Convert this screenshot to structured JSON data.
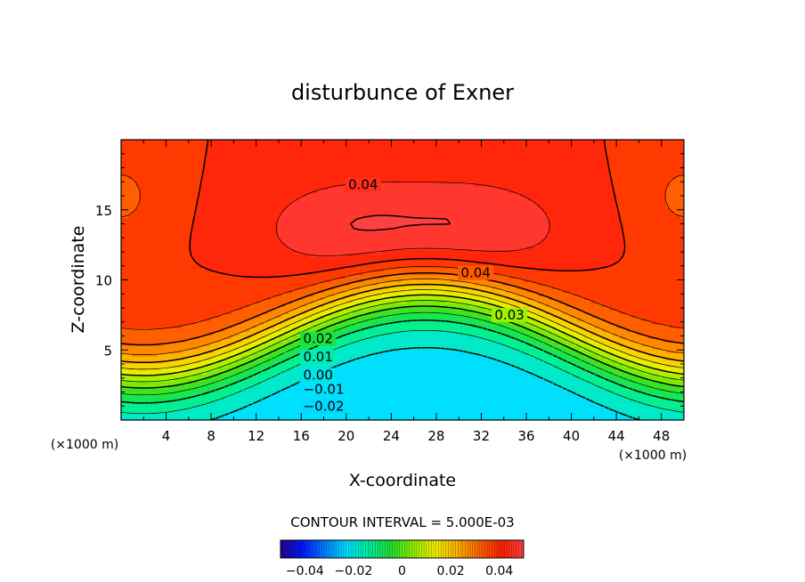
{
  "chart_data": {
    "type": "heatmap",
    "title": "disturbunce of Exner",
    "xlabel": "X-coordinate",
    "ylabel": "Z-coordinate",
    "x_unit": "(×1000 m)",
    "x_unit_right": "(×1000 m)",
    "xlim": [
      0,
      50
    ],
    "ylim": [
      0,
      20
    ],
    "x_ticks": [
      4,
      8,
      12,
      16,
      20,
      24,
      28,
      32,
      36,
      40,
      44,
      48
    ],
    "y_ticks": [
      5,
      10,
      15
    ],
    "contour_interval_text": "CONTOUR INTERVAL = 5.000E-03",
    "contour_interval": 0.005,
    "value_range": [
      -0.05,
      0.05
    ],
    "colorbar_ticks": [
      -0.04,
      -0.02,
      0,
      0.02,
      0.04
    ],
    "colorbar_tick_labels": [
      "−0.04",
      "−0.02",
      "0",
      "0.02",
      "0.04"
    ],
    "contour_labels": [
      {
        "text": "0.04",
        "x": 21.5,
        "z": 16.8
      },
      {
        "text": "0.04",
        "x": 31.5,
        "z": 10.5
      },
      {
        "text": "0.03",
        "x": 34.5,
        "z": 7.5
      },
      {
        "text": "0.02",
        "x": 17.5,
        "z": 5.8
      },
      {
        "text": "0.01",
        "x": 17.5,
        "z": 4.5
      },
      {
        "text": "0.00",
        "x": 17.5,
        "z": 3.2
      },
      {
        "text": "−0.01",
        "x": 18.0,
        "z": 2.2
      },
      {
        "text": "−0.02",
        "x": 18.0,
        "z": 1.0
      }
    ],
    "colormap": [
      "#2a0090",
      "#0018ff",
      "#0080ff",
      "#00e0ff",
      "#00f0a0",
      "#20e030",
      "#90f000",
      "#f0f000",
      "#ffb000",
      "#ff6400",
      "#ff2000",
      "#ff4040"
    ],
    "grid": false
  }
}
